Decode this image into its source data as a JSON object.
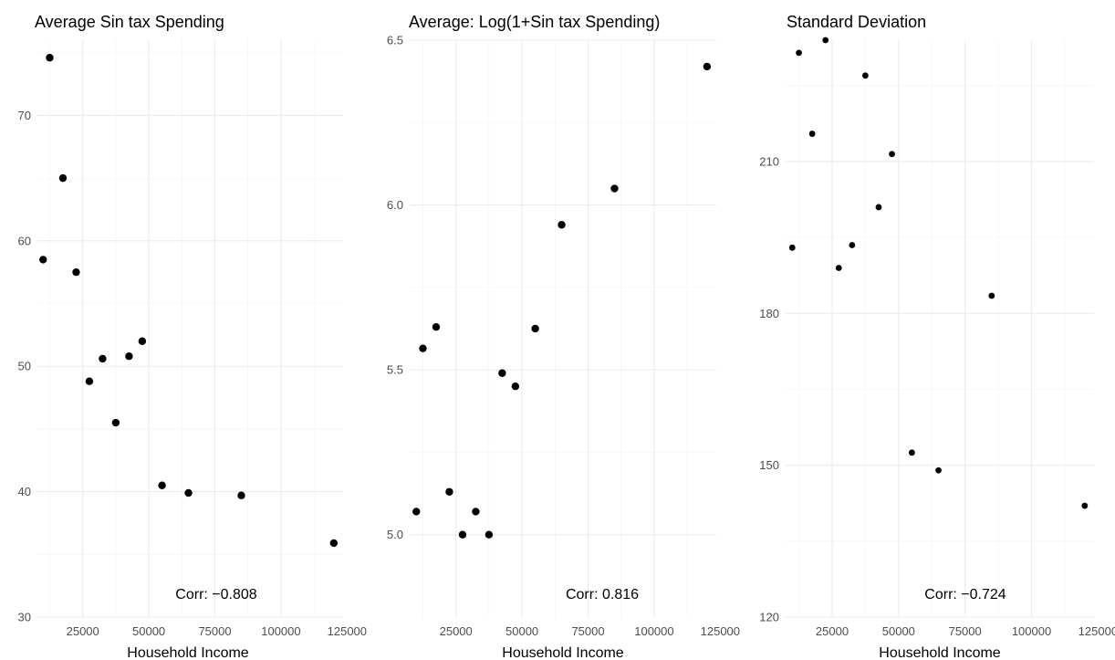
{
  "chart_data": [
    {
      "type": "scatter",
      "title": "Average Sin tax Spending",
      "xlabel": "Household Income",
      "ylabel": "",
      "xlim": [
        7500,
        123500
      ],
      "ylim": [
        30,
        76
      ],
      "xticks": [
        25000,
        50000,
        75000,
        100000,
        125000
      ],
      "xtick_labels": [
        "25000",
        "50000",
        "75000",
        "100000",
        "125000"
      ],
      "yticks": [
        30,
        40,
        50,
        60,
        70
      ],
      "ytick_labels": [
        "30",
        "40",
        "50",
        "60",
        "70"
      ],
      "grid": true,
      "annotation": "Corr: −0.808",
      "x": [
        10000,
        12500,
        17500,
        22500,
        27500,
        32500,
        37500,
        42500,
        47500,
        55000,
        65000,
        85000,
        120000
      ],
      "y": [
        58.5,
        74.6,
        65.0,
        57.5,
        48.8,
        50.6,
        45.5,
        50.8,
        52.0,
        40.5,
        39.9,
        39.7,
        35.9
      ]
    },
    {
      "type": "scatter",
      "title": "Average: Log(1+Sin tax Spending)",
      "xlabel": "Household Income",
      "ylabel": "",
      "xlim": [
        7500,
        123500
      ],
      "ylim": [
        4.75,
        6.5
      ],
      "xticks": [
        25000,
        50000,
        75000,
        100000,
        125000
      ],
      "xtick_labels": [
        "25000",
        "50000",
        "75000",
        "100000",
        "125000"
      ],
      "yticks": [
        5.0,
        5.5,
        6.0,
        6.5
      ],
      "ytick_labels": [
        "5.0",
        "5.5",
        "6.0",
        "6.5"
      ],
      "grid": true,
      "annotation": "Corr: 0.816",
      "x": [
        10000,
        12500,
        17500,
        22500,
        27500,
        32500,
        37500,
        42500,
        47500,
        55000,
        65000,
        85000,
        120000
      ],
      "y": [
        5.07,
        5.565,
        5.63,
        5.13,
        5.0,
        5.07,
        5.0,
        5.49,
        5.45,
        5.625,
        5.94,
        6.05,
        6.42
      ]
    },
    {
      "type": "scatter",
      "title": "Standard Deviation",
      "xlabel": "Household Income",
      "ylabel": "",
      "xlim": [
        7500,
        123500
      ],
      "ylim": [
        120,
        234
      ],
      "xticks": [
        25000,
        50000,
        75000,
        100000,
        125000
      ],
      "xtick_labels": [
        "25000",
        "50000",
        "75000",
        "100000",
        "125000"
      ],
      "yticks": [
        120,
        150,
        180,
        210
      ],
      "ytick_labels": [
        "120",
        "150",
        "180",
        "210"
      ],
      "grid": true,
      "annotation": "Corr: −0.724",
      "x": [
        10000,
        12500,
        17500,
        22500,
        27500,
        32500,
        37500,
        42500,
        47500,
        55000,
        65000,
        85000,
        120000
      ],
      "y": [
        193,
        231.5,
        215.5,
        234,
        189,
        193.5,
        227,
        201,
        211.5,
        152.5,
        149,
        183.5,
        142
      ]
    }
  ]
}
